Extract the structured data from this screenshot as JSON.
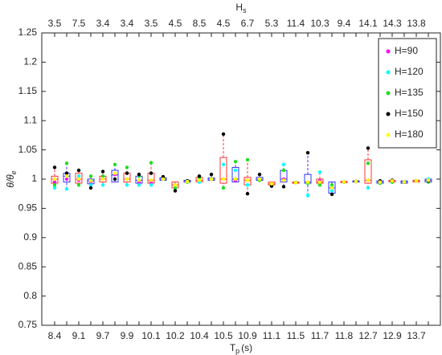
{
  "chart_data": {
    "type": "box",
    "top_axis_label": {
      "text": "H",
      "sub": "s"
    },
    "xlabel": {
      "text": "T",
      "sub": "p",
      "unit": "(s)"
    },
    "ylabel": {
      "text": "θ/θ",
      "sub": "e"
    },
    "categories": [
      "8.4",
      null,
      "9.1",
      null,
      "9.7",
      null,
      "9.9",
      null,
      "10.1",
      null,
      "10.2",
      null,
      "10.4",
      null,
      "10.5",
      null,
      "10.9",
      null,
      "11.1",
      null,
      "11.5",
      null,
      "11.7",
      null,
      "11.8",
      null,
      "12.7",
      null,
      "12.9",
      null,
      "13.7",
      null
    ],
    "top_categories": [
      "3.5",
      null,
      "7.5",
      null,
      "3.4",
      null,
      "3.4",
      null,
      "3.5",
      null,
      "4.5",
      null,
      "8.5",
      null,
      "4.5",
      null,
      "6.7",
      null,
      "5.3",
      null,
      "11.4",
      null,
      "10.3",
      null,
      "9.4",
      null,
      "14.1",
      null,
      "14.3",
      null,
      "13.8",
      null
    ],
    "ylim": [
      0.75,
      1.25
    ],
    "yticks": [
      0.75,
      0.8,
      0.85,
      0.9,
      0.95,
      1,
      1.05,
      1.1,
      1.15,
      1.2,
      1.25
    ],
    "box_colors": [
      "#ff3333",
      "#3333ff"
    ],
    "box_stats": [
      [
        0.985,
        0.993,
        1.0,
        1.005,
        1.02
      ],
      [
        0.983,
        0.995,
        1.005,
        1.01,
        1.027
      ],
      [
        0.99,
        0.993,
        1.0,
        1.01,
        1.015
      ],
      [
        0.985,
        0.992,
        0.997,
        1.0,
        1.005
      ],
      [
        0.99,
        0.995,
        1.0,
        1.005,
        1.013
      ],
      [
        1.0,
        0.995,
        1.007,
        1.015,
        1.025
      ],
      [
        0.99,
        0.995,
        1.0,
        1.01,
        1.02
      ],
      [
        0.99,
        0.993,
        0.998,
        1.005,
        1.008
      ],
      [
        0.99,
        0.993,
        0.998,
        1.01,
        1.028
      ],
      [
        1.0,
        0.998,
        1.0,
        1.002,
        1.004
      ],
      [
        0.98,
        0.985,
        0.99,
        0.995,
        0.99
      ],
      [
        0.995,
        0.995,
        0.996,
        0.998,
        0.997
      ],
      [
        0.995,
        0.995,
        0.998,
        1.003,
        1.005
      ],
      [
        1.0,
        0.998,
        1.0,
        1.002,
        1.008
      ],
      [
        0.985,
        0.993,
        1.0,
        1.037,
        1.077
      ],
      [
        0.998,
        0.995,
        1.0,
        1.02,
        1.03
      ],
      [
        0.975,
        0.99,
        0.998,
        1.003,
        1.033
      ],
      [
        0.998,
        0.998,
        1.0,
        1.003,
        1.008
      ],
      [
        0.988,
        0.99,
        0.992,
        0.995,
        0.992
      ],
      [
        0.987,
        0.995,
        1.0,
        1.015,
        1.025
      ],
      [
        0.994,
        0.993,
        0.994,
        0.995,
        0.994
      ],
      [
        0.972,
        0.993,
        0.995,
        1.008,
        1.045
      ],
      [
        0.99,
        0.993,
        0.995,
        1.0,
        1.012
      ],
      [
        0.974,
        0.976,
        0.985,
        0.995,
        0.99
      ],
      [
        0.995,
        0.994,
        0.995,
        0.996,
        0.995
      ],
      [
        0.996,
        0.995,
        0.996,
        0.997,
        0.996
      ],
      [
        0.985,
        0.993,
        0.998,
        1.033,
        1.053
      ],
      [
        0.993,
        0.993,
        0.995,
        0.997,
        0.997
      ],
      [
        0.995,
        0.995,
        0.997,
        0.998,
        0.998
      ],
      [
        0.995,
        0.993,
        0.995,
        0.997,
        0.995
      ],
      [
        0.997,
        0.995,
        0.997,
        0.998,
        0.997
      ],
      [
        0.995,
        0.995,
        0.998,
        1.0,
        1.0
      ]
    ],
    "series": [
      {
        "name": "H=90",
        "color": "#ff00ff",
        "values": [
          0.995,
          1.0,
          0.998,
          0.995,
          1.0,
          1.008,
          1.0,
          0.995,
          0.995,
          1.0,
          0.99,
          0.996,
          0.998,
          1.0,
          1.0,
          0.998,
          0.998,
          1.0,
          0.992,
          1.0,
          0.994,
          0.995,
          0.997,
          0.985,
          0.995,
          0.996,
          0.998,
          0.995,
          0.997,
          0.995,
          0.997,
          0.998
        ]
      },
      {
        "name": "H=120",
        "color": "#00ffff",
        "values": [
          0.985,
          0.983,
          1.005,
          0.99,
          0.99,
          1.0,
          0.99,
          0.99,
          0.99,
          1.0,
          0.99,
          0.997,
          0.995,
          1.0,
          1.025,
          1.015,
          0.99,
          1.0,
          0.99,
          1.025,
          0.994,
          0.972,
          1.012,
          0.98,
          0.995,
          0.996,
          0.985,
          0.995,
          0.995,
          0.995,
          0.997,
          1.0
        ]
      },
      {
        "name": "H=135",
        "color": "#22dd22",
        "values": [
          0.99,
          1.027,
          0.99,
          1.005,
          1.005,
          1.025,
          1.02,
          1.005,
          1.028,
          1.0,
          0.985,
          0.995,
          1.002,
          1.0,
          0.985,
          1.03,
          1.033,
          0.998,
          0.99,
          1.015,
          0.994,
          0.993,
          0.99,
          0.99,
          0.995,
          0.996,
          1.027,
          0.993,
          0.995,
          0.995,
          0.997,
          0.995
        ]
      },
      {
        "name": "H=150",
        "color": "#000000",
        "values": [
          1.02,
          1.01,
          1.015,
          0.985,
          1.013,
          1.0,
          1.01,
          1.008,
          1.01,
          1.004,
          0.98,
          0.997,
          1.005,
          1.008,
          1.077,
          1.0,
          0.975,
          1.008,
          0.988,
          0.987,
          0.994,
          1.045,
          0.995,
          0.974,
          0.995,
          0.996,
          1.053,
          0.997,
          0.998,
          0.995,
          0.997,
          0.997
        ]
      },
      {
        "name": "H=180",
        "color": "#ffff00",
        "values": [
          1.0,
          1.005,
          1.0,
          0.997,
          1.0,
          1.01,
          1.0,
          0.998,
          0.998,
          1.0,
          0.99,
          0.996,
          0.998,
          1.0,
          1.0,
          1.0,
          0.998,
          1.0,
          0.992,
          0.998,
          0.994,
          0.995,
          0.995,
          0.985,
          0.995,
          0.996,
          0.998,
          0.995,
          0.997,
          0.995,
          0.997,
          0.998
        ]
      }
    ],
    "legend": "top-right"
  }
}
